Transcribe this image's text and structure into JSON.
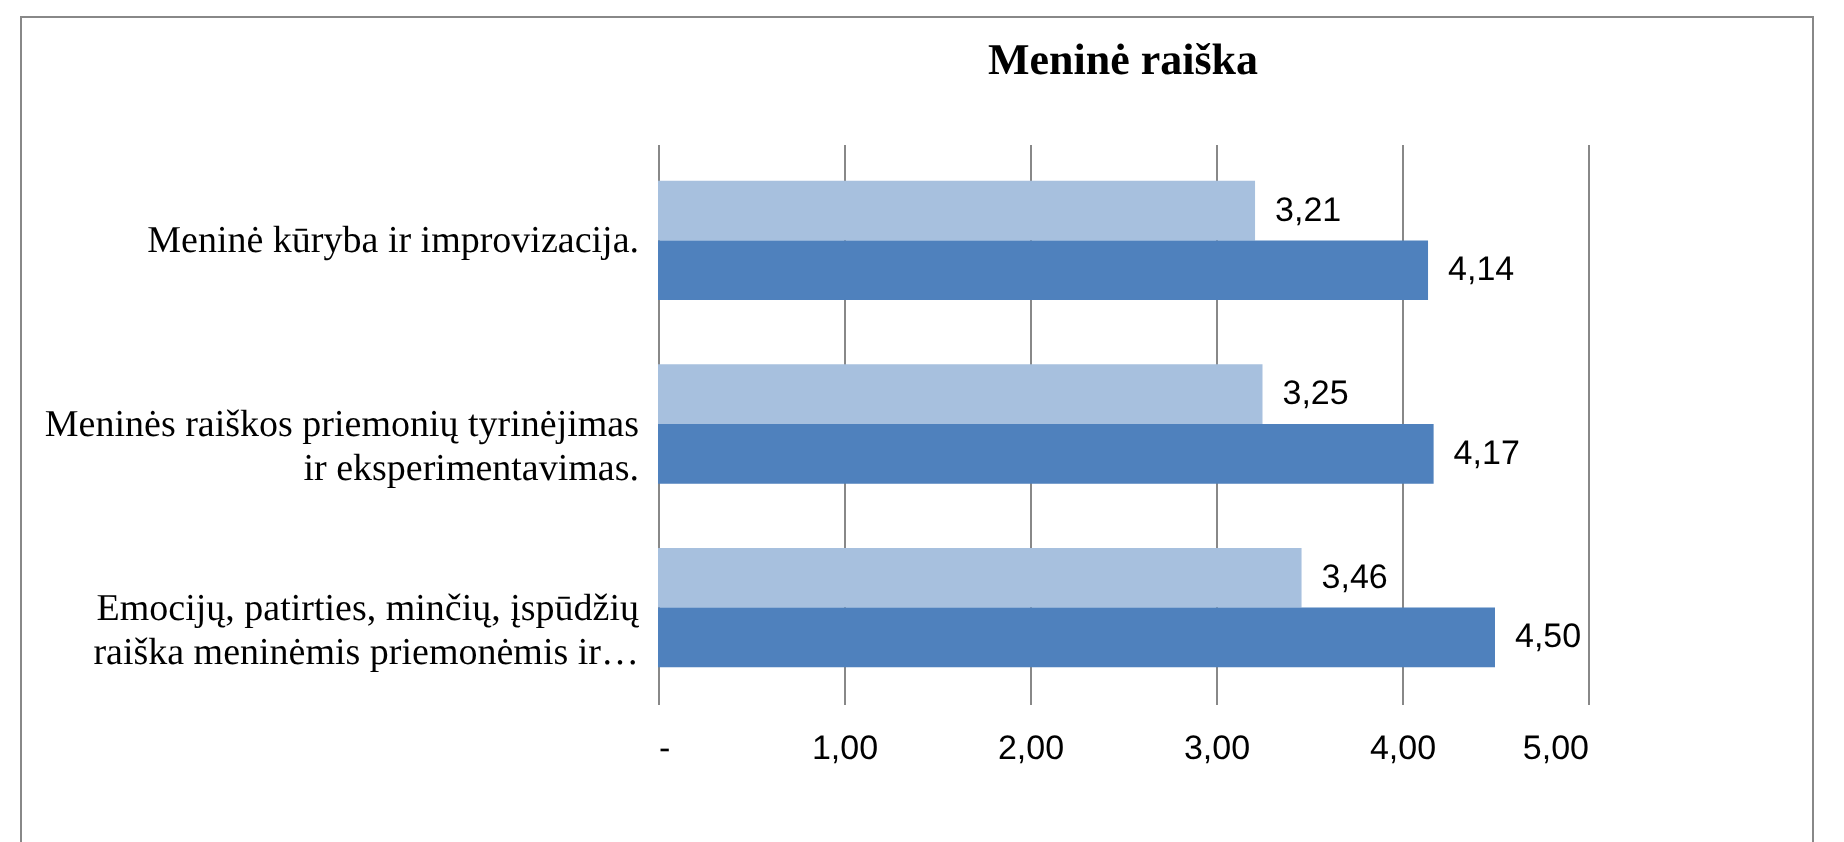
{
  "chart_data": {
    "type": "bar",
    "orientation": "horizontal",
    "title": "Meninė raiška",
    "categories": [
      "Meninė kūryba ir improvizacija.",
      "Meninės raiškos priemonių tyrinėjimas ir eksperimentavimas.",
      "Emocijų, patirties, minčių, įspūdžių raiška meninėmis priemonėmis ir…"
    ],
    "series": [
      {
        "color": "#a7c0de",
        "values": [
          3.21,
          3.25,
          3.46
        ],
        "value_labels": [
          "3,21",
          "3,25",
          "3,46"
        ]
      },
      {
        "color": "#4f81bd",
        "values": [
          4.14,
          4.17,
          4.5
        ],
        "value_labels": [
          "4,14",
          "4,17",
          "4,50"
        ]
      }
    ],
    "xlim": [
      0,
      5
    ],
    "xticks": [
      {
        "value": 0,
        "label": "-"
      },
      {
        "value": 1,
        "label": "1,00"
      },
      {
        "value": 2,
        "label": "2,00"
      },
      {
        "value": 3,
        "label": "3,00"
      },
      {
        "value": 4,
        "label": "4,00"
      },
      {
        "value": 5,
        "label": "5,00"
      }
    ],
    "grid": "x",
    "legend": false
  }
}
